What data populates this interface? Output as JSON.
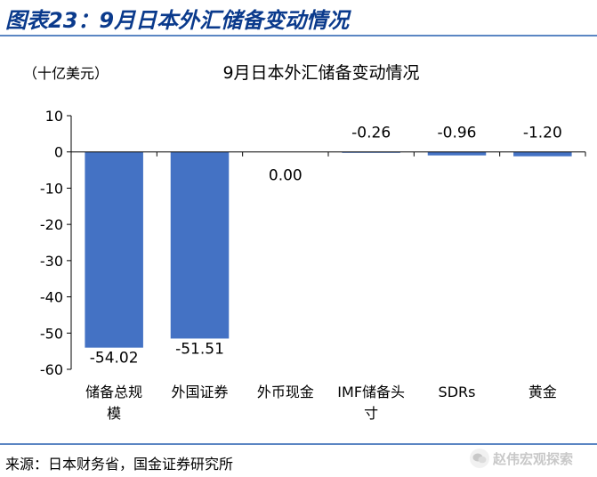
{
  "figure_label": "图表23：9月日本外汇储备变动情况",
  "source_note": "来源：日本财务省，国金证券研究所",
  "watermark": {
    "text": "赵伟宏观探索",
    "icon": "wechat-icon"
  },
  "colors": {
    "bar": "#4472c4",
    "title": "#0a3a8c",
    "rule": "#5b86c3"
  },
  "chart_data": {
    "type": "bar",
    "title": "9月日本外汇储备变动情况",
    "ylabel": "（十亿美元）",
    "xlabel": "",
    "categories": [
      "储备总规模",
      "外国证券",
      "外币现金",
      "IMF储备头寸",
      "SDRs",
      "黄金"
    ],
    "category_lines": [
      [
        "储备总规",
        "模"
      ],
      [
        "外国证券"
      ],
      [
        "外币现金"
      ],
      [
        "IMF储备头",
        "寸"
      ],
      [
        "SDRs"
      ],
      [
        "黄金"
      ]
    ],
    "values": [
      -54.02,
      -51.51,
      0.0,
      -0.26,
      -0.96,
      -1.2
    ],
    "labels": [
      "-54.02",
      "-51.51",
      "0.00",
      "-0.26",
      "-0.96",
      "-1.20"
    ],
    "ylim": [
      -60,
      10
    ],
    "yticks": [
      10,
      0,
      -10,
      -20,
      -30,
      -40,
      -50,
      -60
    ],
    "grid": false,
    "legend": false
  }
}
